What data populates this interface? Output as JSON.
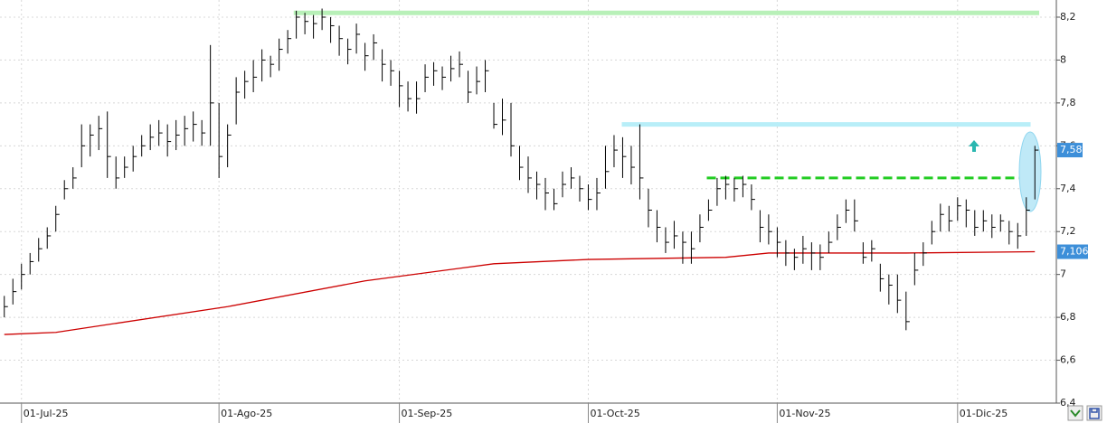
{
  "chart_data": {
    "type": "ohlc",
    "xlim": [
      -0.5,
      122.5
    ],
    "ylim": [
      6.4,
      8.28
    ],
    "xticks": [
      {
        "value": 2,
        "label": "01-Jul-25"
      },
      {
        "value": 25,
        "label": "01-Ago-25"
      },
      {
        "value": 46,
        "label": "01-Sep-25"
      },
      {
        "value": 68,
        "label": "01-Oct-25"
      },
      {
        "value": 90,
        "label": "01-Nov-25"
      },
      {
        "value": 111,
        "label": "01-Dic-25"
      }
    ],
    "yticks": [
      {
        "value": 6.4,
        "label": "6,4"
      },
      {
        "value": 6.6,
        "label": "6,6"
      },
      {
        "value": 6.8,
        "label": "6,8"
      },
      7,
      {
        "value": 7.2,
        "label": "7,2"
      },
      {
        "value": 7.4,
        "label": "7,4"
      },
      {
        "value": 7.6,
        "label": "7,6"
      },
      {
        "value": 7.8,
        "label": "7,8"
      },
      8,
      {
        "value": 8.2,
        "label": "8,2"
      }
    ],
    "grid": true,
    "bars": {
      "color": "#000000",
      "high": [
        6.9,
        6.98,
        7.05,
        7.1,
        7.17,
        7.22,
        7.32,
        7.44,
        7.5,
        7.7,
        7.7,
        7.74,
        7.76,
        7.55,
        7.55,
        7.6,
        7.65,
        7.7,
        7.72,
        7.7,
        7.72,
        7.74,
        7.76,
        7.72,
        8.07,
        7.8,
        7.7,
        7.92,
        7.95,
        8.0,
        8.05,
        8.02,
        8.1,
        8.14,
        8.23,
        8.22,
        8.21,
        8.24,
        8.2,
        8.16,
        8.1,
        8.17,
        8.08,
        8.12,
        8.05,
        8.0,
        7.95,
        7.9,
        7.9,
        7.98,
        7.99,
        7.97,
        8.02,
        8.04,
        7.95,
        7.97,
        8.0,
        7.8,
        7.82,
        7.8,
        7.6,
        7.55,
        7.48,
        7.45,
        7.4,
        7.48,
        7.5,
        7.46,
        7.42,
        7.45,
        7.6,
        7.65,
        7.64,
        7.6,
        7.7,
        7.4,
        7.3,
        7.22,
        7.25,
        7.2,
        7.2,
        7.28,
        7.35,
        7.45,
        7.46,
        7.45,
        7.46,
        7.42,
        7.3,
        7.28,
        7.22,
        7.16,
        7.12,
        7.18,
        7.15,
        7.14,
        7.2,
        7.28,
        7.35,
        7.35,
        7.15,
        7.16,
        7.05,
        7.0,
        7.0,
        6.92,
        7.1,
        7.15,
        7.25,
        7.33,
        7.32,
        7.36,
        7.35,
        7.3,
        7.3,
        7.28,
        7.28,
        7.25,
        7.24,
        7.36,
        7.6
      ],
      "low": [
        6.8,
        6.86,
        6.93,
        7.0,
        7.06,
        7.12,
        7.2,
        7.35,
        7.4,
        7.5,
        7.55,
        7.58,
        7.45,
        7.4,
        7.45,
        7.48,
        7.55,
        7.58,
        7.6,
        7.55,
        7.58,
        7.6,
        7.62,
        7.6,
        7.6,
        7.45,
        7.5,
        7.7,
        7.82,
        7.85,
        7.9,
        7.92,
        7.95,
        8.03,
        8.1,
        8.12,
        8.1,
        8.14,
        8.08,
        8.02,
        7.98,
        8.03,
        7.95,
        8.0,
        7.9,
        7.88,
        7.78,
        7.76,
        7.75,
        7.85,
        7.88,
        7.86,
        7.9,
        7.92,
        7.8,
        7.84,
        7.85,
        7.68,
        7.65,
        7.55,
        7.44,
        7.38,
        7.35,
        7.3,
        7.3,
        7.36,
        7.4,
        7.34,
        7.3,
        7.3,
        7.4,
        7.5,
        7.45,
        7.42,
        7.35,
        7.22,
        7.15,
        7.1,
        7.12,
        7.05,
        7.05,
        7.15,
        7.25,
        7.32,
        7.35,
        7.34,
        7.36,
        7.3,
        7.15,
        7.14,
        7.08,
        7.04,
        7.02,
        7.05,
        7.02,
        7.02,
        7.1,
        7.16,
        7.24,
        7.2,
        7.05,
        7.06,
        6.92,
        6.86,
        6.82,
        6.74,
        6.95,
        7.04,
        7.14,
        7.2,
        7.2,
        7.25,
        7.22,
        7.18,
        7.2,
        7.17,
        7.2,
        7.14,
        7.12,
        7.18,
        7.35
      ],
      "close": [
        6.85,
        6.92,
        7.0,
        7.06,
        7.12,
        7.18,
        7.28,
        7.4,
        7.45,
        7.6,
        7.65,
        7.68,
        7.55,
        7.45,
        7.5,
        7.55,
        7.6,
        7.64,
        7.66,
        7.62,
        7.65,
        7.68,
        7.7,
        7.66,
        7.8,
        7.55,
        7.65,
        7.85,
        7.9,
        7.92,
        8.0,
        7.98,
        8.05,
        8.1,
        8.2,
        8.18,
        8.17,
        8.2,
        8.16,
        8.1,
        8.05,
        8.12,
        8.02,
        8.08,
        7.98,
        7.95,
        7.88,
        7.82,
        7.82,
        7.92,
        7.95,
        7.92,
        7.96,
        7.98,
        7.85,
        7.9,
        7.95,
        7.7,
        7.72,
        7.6,
        7.5,
        7.45,
        7.42,
        7.38,
        7.33,
        7.42,
        7.45,
        7.4,
        7.35,
        7.38,
        7.48,
        7.58,
        7.55,
        7.5,
        7.45,
        7.3,
        7.22,
        7.15,
        7.18,
        7.15,
        7.12,
        7.22,
        7.3,
        7.4,
        7.42,
        7.4,
        7.42,
        7.35,
        7.22,
        7.2,
        7.15,
        7.1,
        7.08,
        7.12,
        7.1,
        7.08,
        7.15,
        7.22,
        7.3,
        7.25,
        7.08,
        7.12,
        6.98,
        6.95,
        6.88,
        6.78,
        7.02,
        7.1,
        7.2,
        7.28,
        7.25,
        7.32,
        7.3,
        7.22,
        7.25,
        7.22,
        7.25,
        7.2,
        7.18,
        7.3,
        7.58
      ],
      "last": {
        "value": 7.58,
        "label": "7,58",
        "color": "#3d8fd9"
      }
    },
    "moving_average": {
      "color": "#cc0000",
      "x": [
        0,
        6,
        26,
        42,
        57,
        68,
        84,
        89,
        105,
        120
      ],
      "values": [
        6.72,
        6.73,
        6.85,
        6.97,
        7.05,
        7.07,
        7.08,
        7.1,
        7.1,
        7.106
      ],
      "last": {
        "value": 7.106,
        "label": "7,106",
        "color": "#3d8fd9"
      }
    },
    "levels": [
      {
        "value": 8.22,
        "start": 33.7,
        "end": 120.5,
        "color": "#b8f0b8",
        "style": "solid"
      },
      {
        "value": 7.7,
        "start": 71.9,
        "end": 119.5,
        "color": "#b8eef8",
        "style": "solid"
      },
      {
        "value": 7.45,
        "start": 81.8,
        "end": 120.5,
        "color": "#22cc22",
        "style": "dashed"
      }
    ]
  }
}
